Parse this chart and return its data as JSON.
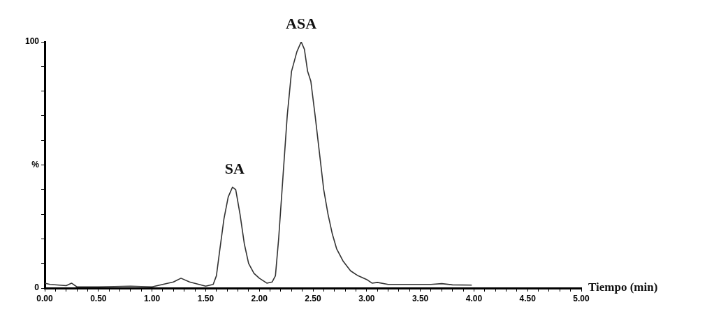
{
  "chart_data": {
    "type": "line",
    "xlabel": "Tiempo (min)",
    "x": [
      0.0,
      0.05,
      0.2,
      0.25,
      0.3,
      0.5,
      0.8,
      1.0,
      1.1,
      1.2,
      1.27,
      1.35,
      1.5,
      1.57,
      1.6,
      1.63,
      1.67,
      1.71,
      1.75,
      1.78,
      1.82,
      1.86,
      1.9,
      1.95,
      2.0,
      2.07,
      2.12,
      2.15,
      2.18,
      2.22,
      2.26,
      2.3,
      2.35,
      2.39,
      2.42,
      2.45,
      2.48,
      2.52,
      2.56,
      2.6,
      2.64,
      2.68,
      2.72,
      2.78,
      2.85,
      2.92,
      3.0,
      3.05,
      3.1,
      3.2,
      3.4,
      3.6,
      3.7,
      3.8,
      3.98
    ],
    "series": [
      {
        "color": "#333333",
        "values": [
          2,
          1.5,
          1,
          2,
          0.5,
          0.5,
          0.8,
          0.5,
          1.5,
          2.5,
          4,
          2.5,
          0.8,
          1.5,
          5,
          15,
          28,
          37,
          41,
          40,
          30,
          18,
          10,
          6,
          4,
          2,
          2.5,
          5,
          20,
          45,
          70,
          88,
          96,
          100,
          97,
          88,
          84,
          70,
          55,
          40,
          30,
          22,
          16,
          11,
          7,
          5,
          3.5,
          2,
          2.3,
          1.5,
          1.5,
          1.5,
          1.8,
          1.3,
          1.2
        ]
      }
    ],
    "xlim": [
      0,
      5
    ],
    "ylim": [
      0,
      100
    ],
    "xticks": [
      {
        "value": 0,
        "label": "0.00"
      },
      {
        "value": 0.1,
        "label": null
      },
      {
        "value": 0.2,
        "label": null
      },
      {
        "value": 0.3,
        "label": null
      },
      {
        "value": 0.4,
        "label": null
      },
      {
        "value": 0.5,
        "label": "0.50"
      },
      {
        "value": 0.6,
        "label": null
      },
      {
        "value": 0.7,
        "label": null
      },
      {
        "value": 0.8,
        "label": null
      },
      {
        "value": 0.9,
        "label": null
      },
      {
        "value": 1,
        "label": "1.00"
      },
      {
        "value": 1.1,
        "label": null
      },
      {
        "value": 1.2,
        "label": null
      },
      {
        "value": 1.3,
        "label": null
      },
      {
        "value": 1.4,
        "label": null
      },
      {
        "value": 1.5,
        "label": "1.50"
      },
      {
        "value": 1.6,
        "label": null
      },
      {
        "value": 1.7,
        "label": null
      },
      {
        "value": 1.8,
        "label": null
      },
      {
        "value": 1.9,
        "label": null
      },
      {
        "value": 2,
        "label": "2.00"
      },
      {
        "value": 2.1,
        "label": null
      },
      {
        "value": 2.2,
        "label": null
      },
      {
        "value": 2.3,
        "label": null
      },
      {
        "value": 2.4,
        "label": null
      },
      {
        "value": 2.5,
        "label": "2.50"
      },
      {
        "value": 2.6,
        "label": null
      },
      {
        "value": 2.7,
        "label": null
      },
      {
        "value": 2.8,
        "label": null
      },
      {
        "value": 2.9,
        "label": null
      },
      {
        "value": 3,
        "label": "3.00"
      },
      {
        "value": 3.1,
        "label": null
      },
      {
        "value": 3.2,
        "label": null
      },
      {
        "value": 3.3,
        "label": null
      },
      {
        "value": 3.4,
        "label": null
      },
      {
        "value": 3.5,
        "label": "3.50"
      },
      {
        "value": 3.6,
        "label": null
      },
      {
        "value": 3.7,
        "label": null
      },
      {
        "value": 3.8,
        "label": null
      },
      {
        "value": 3.9,
        "label": null
      },
      {
        "value": 4,
        "label": "4.00"
      },
      {
        "value": 4.1,
        "label": null
      },
      {
        "value": 4.2,
        "label": null
      },
      {
        "value": 4.3,
        "label": null
      },
      {
        "value": 4.4,
        "label": null
      },
      {
        "value": 4.5,
        "label": "4.50"
      },
      {
        "value": 4.6,
        "label": null
      },
      {
        "value": 4.7,
        "label": null
      },
      {
        "value": 4.8,
        "label": null
      },
      {
        "value": 4.9,
        "label": null
      },
      {
        "value": 5,
        "label": "5.00"
      }
    ],
    "yticks": [
      0,
      {
        "value": 10,
        "label": null
      },
      {
        "value": 20,
        "label": null
      },
      {
        "value": 30,
        "label": null
      },
      {
        "value": 40,
        "label": null
      },
      {
        "value": 50,
        "label": "%"
      },
      {
        "value": 60,
        "label": null
      },
      {
        "value": 70,
        "label": null
      },
      {
        "value": 80,
        "label": null
      },
      {
        "value": 90,
        "label": null
      },
      100
    ],
    "annotations": [
      {
        "text": "SA",
        "x": 1.77,
        "y": 41
      },
      {
        "text": "ASA",
        "x": 2.39,
        "y": 100
      }
    ],
    "grid": false,
    "legend": false,
    "marker": "none",
    "line_style": "solid"
  }
}
